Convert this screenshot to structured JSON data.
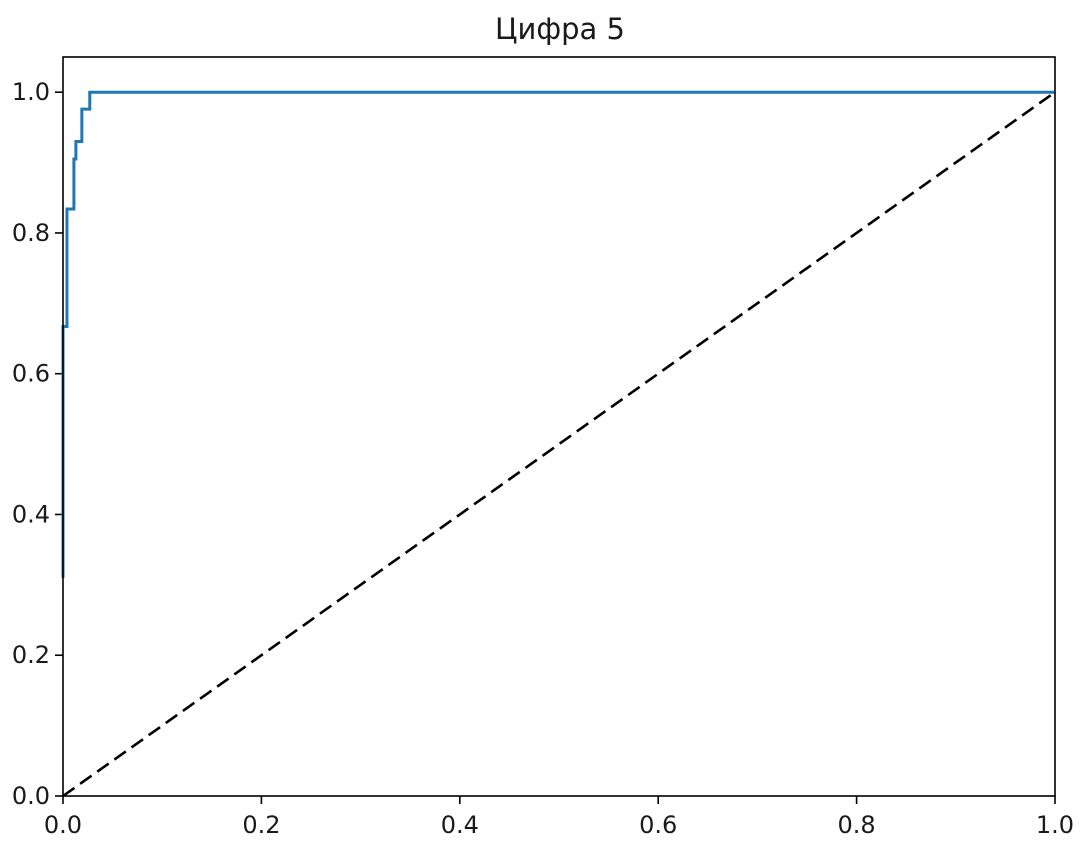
{
  "chart_data": {
    "type": "line",
    "title": "Цифра 5",
    "xlabel": "",
    "ylabel": "",
    "xlim": [
      0.0,
      1.0
    ],
    "ylim": [
      0.0,
      1.05
    ],
    "x_ticks": [
      0.0,
      0.2,
      0.4,
      0.6,
      0.8,
      1.0
    ],
    "x_tick_labels": [
      "0.0",
      "0.2",
      "0.4",
      "0.6",
      "0.8",
      "1.0"
    ],
    "y_ticks": [
      0.0,
      0.2,
      0.4,
      0.6,
      0.8,
      1.0
    ],
    "y_tick_labels": [
      "0.0",
      "0.2",
      "0.4",
      "0.6",
      "0.8",
      "1.0"
    ],
    "grid": false,
    "series": [
      {
        "color": "#1f77b4",
        "style": "solid",
        "x": [
          0.0,
          0.0,
          0.004,
          0.004,
          0.006,
          0.006,
          0.011,
          0.011,
          0.013,
          0.013,
          0.014,
          0.014,
          0.019,
          0.019,
          0.027,
          0.027,
          1.0
        ],
        "y": [
          0.31,
          0.667,
          0.667,
          0.834,
          0.834,
          0.834,
          0.834,
          0.905,
          0.905,
          0.93,
          0.93,
          0.93,
          0.93,
          0.976,
          0.976,
          1.0,
          1.0
        ]
      },
      {
        "color": "#000000",
        "style": "dashed",
        "x": [
          0.0,
          1.0
        ],
        "y": [
          0.0,
          1.0
        ]
      }
    ]
  }
}
